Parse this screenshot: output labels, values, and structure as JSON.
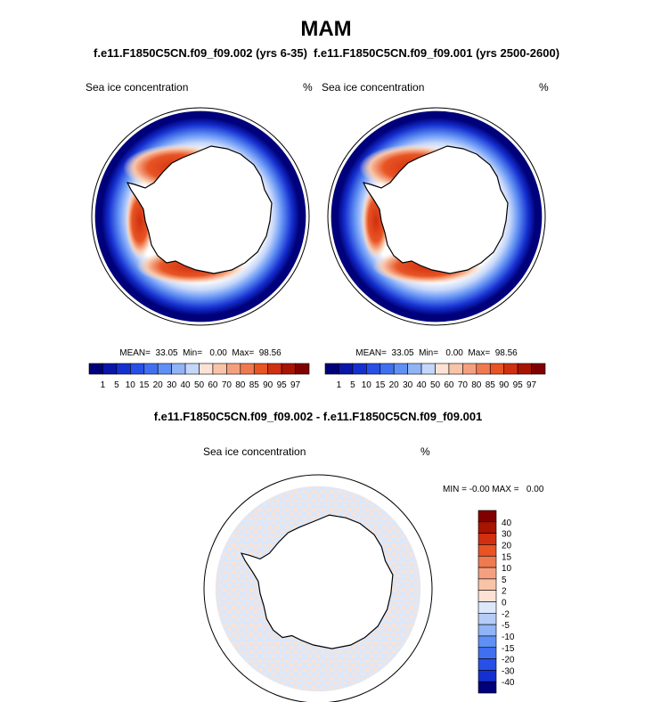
{
  "title": "MAM",
  "panels": [
    {
      "subtitle": "f.e11.F1850C5CN.f09_f09.002 (yrs 6-35)",
      "left_label": "Sea ice concentration",
      "right_label": "%",
      "stats": "MEAN=  33.05  Min=   0.00  Max=  98.56"
    },
    {
      "subtitle": "f.e11.F1850C5CN.f09_f09.001 (yrs 2500-2600)",
      "left_label": "Sea ice concentration",
      "right_label": "%",
      "stats": "MEAN=  33.05  Min=   0.00  Max=  98.56"
    },
    {
      "subtitle": "f.e11.F1850C5CN.f09_f09.002 - f.e11.F1850C5CN.f09_f09.001",
      "left_label": "Sea ice concentration",
      "right_label": "%",
      "stats": "MIN = -0.00 MAX =   0.00"
    }
  ],
  "colorbars": [
    {
      "labels": [
        "1",
        "5",
        "10",
        "15",
        "20",
        "30",
        "40",
        "50",
        "60",
        "70",
        "80",
        "85",
        "90",
        "95",
        "97"
      ],
      "colors": [
        "#00007a",
        "#0a16a8",
        "#1530d0",
        "#2850e6",
        "#4070f0",
        "#6090f4",
        "#90b4f6",
        "#c4d6fa",
        "#fbe2d4",
        "#f8c4a8",
        "#f4a080",
        "#f07a50",
        "#e85424",
        "#d03010",
        "#a81400",
        "#800000"
      ]
    },
    {
      "labels": [
        "1",
        "5",
        "10",
        "15",
        "20",
        "30",
        "40",
        "50",
        "60",
        "70",
        "80",
        "85",
        "90",
        "95",
        "97"
      ],
      "colors": [
        "#00007a",
        "#0a16a8",
        "#1530d0",
        "#2850e6",
        "#4070f0",
        "#6090f4",
        "#90b4f6",
        "#c4d6fa",
        "#fbe2d4",
        "#f8c4a8",
        "#f4a080",
        "#f07a50",
        "#e85424",
        "#d03010",
        "#a81400",
        "#800000"
      ]
    },
    {
      "labels": [
        "40",
        "30",
        "20",
        "15",
        "10",
        "5",
        "2",
        "0",
        "-2",
        "-5",
        "-10",
        "-15",
        "-20",
        "-30",
        "-40"
      ],
      "colors": [
        "#800000",
        "#a81400",
        "#d03010",
        "#e85424",
        "#f07a50",
        "#f4a080",
        "#f8c4a8",
        "#fbe2d4",
        "#dce8fa",
        "#b4ccf6",
        "#90b4f6",
        "#6090f4",
        "#4070f0",
        "#2850e6",
        "#1530d0",
        "#00007a"
      ]
    }
  ]
}
